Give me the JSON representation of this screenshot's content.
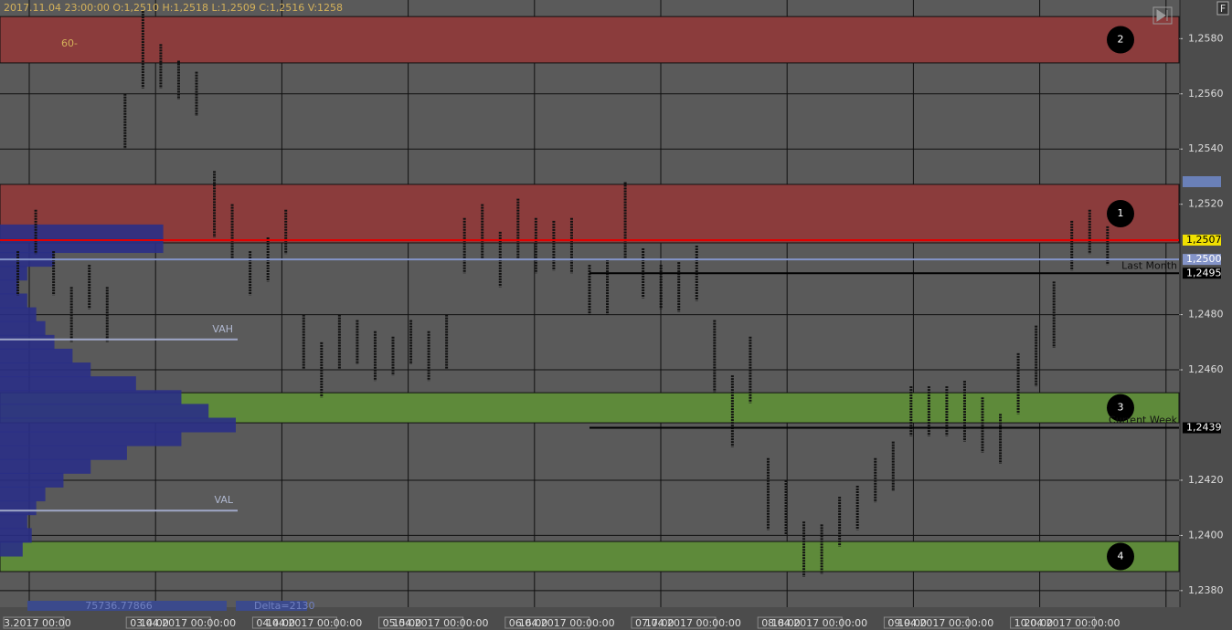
{
  "chart_data": {
    "type": "range",
    "header": "2017.11.04 23:00:00   O:1,2510   H:1,2518   L:1,2509   C:1,2516   V:1258",
    "period_label": "60-",
    "ylim": [
      1.2374,
      1.2594
    ],
    "yticks": [
      {
        "value": 1.238,
        "label": "1,2380"
      },
      {
        "value": 1.24,
        "label": "1,2400"
      },
      {
        "value": 1.242,
        "label": "1,2420"
      },
      {
        "value": 1.246,
        "label": "1,2460"
      },
      {
        "value": 1.248,
        "label": "1,2480"
      },
      {
        "value": 1.252,
        "label": "1,2520"
      },
      {
        "value": 1.254,
        "label": "1,2540"
      },
      {
        "value": 1.256,
        "label": "1,2560"
      },
      {
        "value": 1.258,
        "label": "1,2580"
      }
    ],
    "xlim": [
      -1,
      65
    ],
    "x": [
      0,
      1,
      2,
      3,
      4,
      5,
      6,
      7,
      8,
      9,
      10,
      11,
      12,
      13,
      14,
      15,
      16,
      17,
      18,
      19,
      20,
      21,
      22,
      23,
      24,
      25,
      26,
      27,
      28,
      29,
      30,
      31,
      32,
      33,
      34,
      35,
      36,
      37,
      38,
      39,
      40,
      41,
      42,
      43,
      44,
      45,
      46,
      47,
      48,
      49,
      50,
      51,
      52,
      53,
      54,
      55,
      56,
      57,
      58,
      59,
      60,
      61
    ],
    "high": [
      1.2503,
      1.2518,
      1.2503,
      1.249,
      1.2498,
      1.249,
      1.256,
      1.259,
      1.2578,
      1.2572,
      1.2568,
      1.2532,
      1.252,
      1.2503,
      1.2508,
      1.2518,
      1.248,
      1.247,
      1.248,
      1.2478,
      1.2474,
      1.2472,
      1.2478,
      1.2474,
      1.248,
      1.2515,
      1.252,
      1.251,
      1.2522,
      1.2515,
      1.2514,
      1.2515,
      1.2498,
      1.25,
      1.2528,
      1.2504,
      1.2498,
      1.2499,
      1.2505,
      1.2478,
      1.2458,
      1.2472,
      1.2428,
      1.242,
      1.2405,
      1.2404,
      1.2414,
      1.2418,
      1.2428,
      1.2434,
      1.2454,
      1.2454,
      1.2454,
      1.2456,
      1.245,
      1.2444,
      1.2466,
      1.2476,
      1.2492,
      1.2514,
      1.2518,
      1.2512
    ],
    "low": [
      1.2487,
      1.2502,
      1.2487,
      1.247,
      1.2482,
      1.247,
      1.254,
      1.2562,
      1.2562,
      1.2558,
      1.2552,
      1.2508,
      1.25,
      1.2487,
      1.2492,
      1.2502,
      1.246,
      1.245,
      1.246,
      1.2462,
      1.2456,
      1.2458,
      1.2462,
      1.2456,
      1.246,
      1.2495,
      1.25,
      1.249,
      1.25,
      1.2495,
      1.2496,
      1.2495,
      1.248,
      1.248,
      1.25,
      1.2486,
      1.2482,
      1.2481,
      1.2485,
      1.2452,
      1.2432,
      1.2448,
      1.2402,
      1.24,
      1.2385,
      1.2386,
      1.2396,
      1.2402,
      1.2412,
      1.2416,
      1.2436,
      1.2436,
      1.2436,
      1.2434,
      1.243,
      1.2426,
      1.2444,
      1.2454,
      1.2468,
      1.2496,
      1.2502,
      1.2498
    ],
    "bar_color": "#111111",
    "zones": [
      {
        "label": "2",
        "low": 1.25712,
        "high": 1.2588,
        "color": "#8b3c3c"
      },
      {
        "label": "1",
        "low": 1.2506,
        "high": 1.25272,
        "color": "#8b3c3c"
      },
      {
        "label": "3",
        "low": 1.24408,
        "high": 1.24517,
        "color": "#5e8a3a"
      },
      {
        "label": "4",
        "low": 1.23869,
        "high": 1.23978,
        "color": "#5e8a3a"
      }
    ],
    "levels": [
      {
        "label": "Last Month",
        "price": 1.2495,
        "price_label": "1,2495",
        "color": "#000000"
      },
      {
        "label": "Current Week",
        "price": 1.2439,
        "price_label": "1,2439",
        "color": "#000000"
      },
      {
        "price": 1.2507,
        "price_label": "1,2507",
        "color": "#e00000"
      },
      {
        "price": 1.25,
        "price_label": "1,2500",
        "color": "#8494c8"
      }
    ],
    "value_area": [
      {
        "label": "VAH",
        "price": 1.2471
      },
      {
        "label": "VAL",
        "price": 1.2409
      }
    ],
    "profile": {
      "color": "#2a2f86",
      "plim": [
        0,
        1300
      ],
      "prices": [
        1.2395,
        1.24,
        1.2405,
        1.241,
        1.2415,
        1.242,
        1.2425,
        1.243,
        1.2435,
        1.244,
        1.2445,
        1.245,
        1.2455,
        1.246,
        1.2465,
        1.247,
        1.2475,
        1.248,
        1.2485,
        1.249,
        1.2495,
        1.25,
        1.2505,
        1.251
      ],
      "volumes": [
        25,
        35,
        30,
        40,
        50,
        70,
        100,
        140,
        200,
        260,
        230,
        200,
        150,
        100,
        80,
        60,
        50,
        40,
        30,
        20,
        30,
        60,
        180,
        180
      ]
    },
    "footer_volume": "75736.77866",
    "footer_delta": "Delta=2130",
    "time_labels": [
      "3.2017 00:00",
      "14:00",
      "03.04.2017 00:00:00",
      "14:00",
      "04.04.2017 00:00:00",
      "15:00",
      "05.04.2017 00:00:00",
      "16:00",
      "06.04.2017 00:00:00",
      "17:00",
      "07.04.2017 00:00:00",
      "18:00",
      "08.04.2017 00:00:00",
      "19:00",
      "09.04.2017 00:00:00",
      "20:00",
      "10.04.2017 00:00:00"
    ]
  }
}
